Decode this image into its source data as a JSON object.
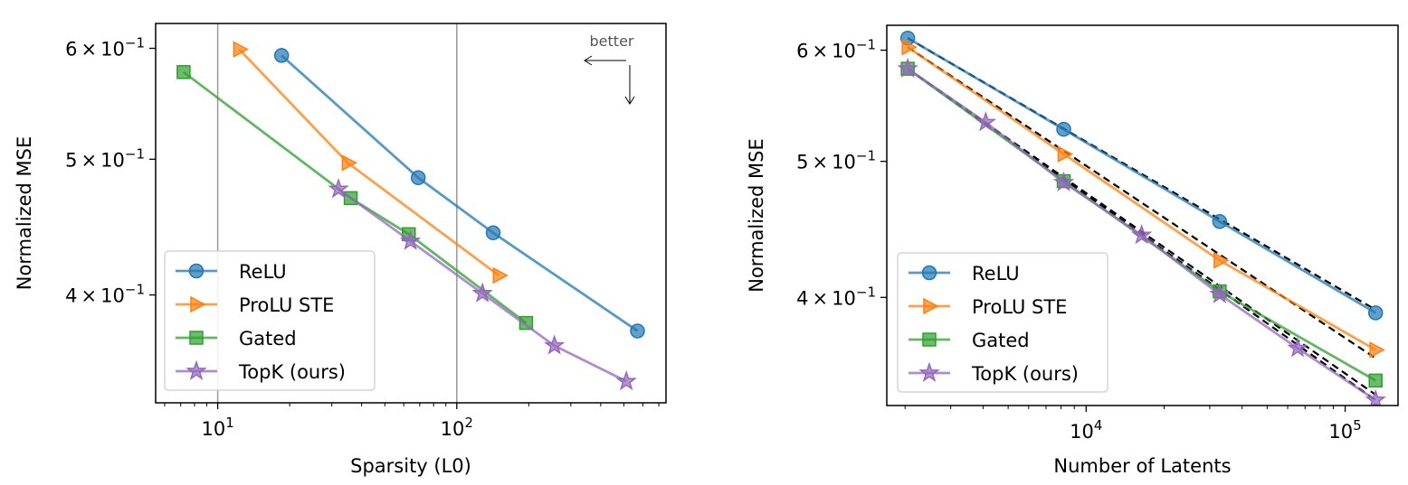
{
  "colors": {
    "ReLU": "#1f77b4",
    "ProLU STE": "#ff7f0e",
    "Gated": "#2ca02c",
    "TopK (ours)": "#9467bd",
    "fit": "#000000",
    "annotation": "#555555"
  },
  "chart_data": [
    {
      "type": "line",
      "xscale": "log",
      "yscale": "log",
      "xlabel": "Sparsity (L0)",
      "ylabel": "Normalized MSE",
      "xlim": [
        5.5,
        750
      ],
      "ylim": [
        0.335,
        0.625
      ],
      "xticks": [
        {
          "value": 10,
          "base": "10",
          "exp": "1"
        },
        {
          "value": 100,
          "base": "10",
          "exp": "2"
        }
      ],
      "yticks": [
        {
          "value": 0.4,
          "mant": "4",
          "base": "10",
          "exp": "−1"
        },
        {
          "value": 0.5,
          "mant": "5",
          "base": "10",
          "exp": "−1"
        },
        {
          "value": 0.6,
          "mant": "6",
          "base": "10",
          "exp": "−1"
        }
      ],
      "vlines": [
        10,
        100
      ],
      "annotation": "better",
      "legend": {
        "position": "lower-left",
        "entries": [
          "ReLU",
          "ProLU STE",
          "Gated",
          "TopK (ours)"
        ]
      },
      "series": [
        {
          "name": "ReLU",
          "marker": "circle",
          "x": [
            18.5,
            69,
            142,
            570
          ],
          "y": [
            0.593,
            0.485,
            0.443,
            0.377
          ]
        },
        {
          "name": "ProLU STE",
          "marker": "triangle-right",
          "x": [
            12.3,
            35,
            150
          ],
          "y": [
            0.599,
            0.497,
            0.413
          ]
        },
        {
          "name": "Gated",
          "marker": "square",
          "x": [
            7.2,
            36,
            63,
            195
          ],
          "y": [
            0.577,
            0.469,
            0.442,
            0.382
          ]
        },
        {
          "name": "TopK (ours)",
          "marker": "star",
          "x": [
            32,
            64,
            128,
            256,
            512
          ],
          "y": [
            0.476,
            0.437,
            0.401,
            0.368,
            0.347
          ]
        }
      ]
    },
    {
      "type": "line",
      "xscale": "log",
      "yscale": "log",
      "xlabel": "Number of Latents",
      "ylabel": "Normalized MSE",
      "xlim": [
        1700,
        160000
      ],
      "ylim": [
        0.335,
        0.625
      ],
      "xticks": [
        {
          "value": 10000,
          "base": "10",
          "exp": "4"
        },
        {
          "value": 100000,
          "base": "10",
          "exp": "5"
        }
      ],
      "yticks": [
        {
          "value": 0.4,
          "mant": "4",
          "base": "10",
          "exp": "−1"
        },
        {
          "value": 0.5,
          "mant": "5",
          "base": "10",
          "exp": "−1"
        },
        {
          "value": 0.6,
          "mant": "6",
          "base": "10",
          "exp": "−1"
        }
      ],
      "legend": {
        "position": "lower-left",
        "entries": [
          "ReLU",
          "ProLU STE",
          "Gated",
          "TopK (ours)"
        ]
      },
      "series": [
        {
          "name": "ReLU",
          "marker": "circle",
          "x": [
            2048,
            8192,
            32768,
            131072
          ],
          "y": [
            0.612,
            0.527,
            0.453,
            0.39
          ]
        },
        {
          "name": "ProLU STE",
          "marker": "triangle-right",
          "x": [
            2048,
            8192,
            32768,
            131072
          ],
          "y": [
            0.603,
            0.506,
            0.425,
            0.367
          ]
        },
        {
          "name": "Gated",
          "marker": "square",
          "x": [
            2048,
            8192,
            32768,
            131072
          ],
          "y": [
            0.582,
            0.484,
            0.404,
            0.349
          ]
        },
        {
          "name": "TopK (ours)",
          "marker": "star",
          "x": [
            2048,
            4096,
            8192,
            16384,
            32768,
            65536,
            131072
          ],
          "y": [
            0.582,
            0.533,
            0.483,
            0.443,
            0.402,
            0.368,
            0.338
          ]
        }
      ],
      "fits": [
        {
          "name": "ReLU",
          "x": [
            2048,
            131072
          ],
          "y": [
            0.612,
            0.392
          ]
        },
        {
          "name": "ProLU STE",
          "x": [
            2048,
            131072
          ],
          "y": [
            0.603,
            0.362
          ]
        },
        {
          "name": "Gated",
          "x": [
            2048,
            131072
          ],
          "y": [
            0.582,
            0.341
          ]
        },
        {
          "name": "TopK (ours)",
          "x": [
            2048,
            131072
          ],
          "y": [
            0.582,
            0.338
          ]
        }
      ]
    }
  ]
}
